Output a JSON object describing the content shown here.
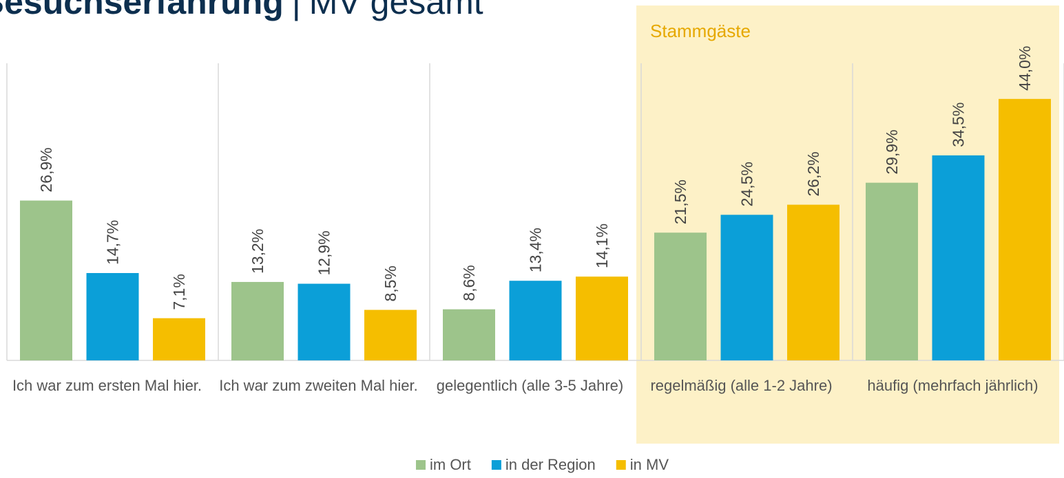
{
  "chart_data": {
    "type": "bar",
    "title": "Besuchserfahrung",
    "subtitle": "MV gesamt",
    "title_separator": "|",
    "categories": [
      "Ich war zum ersten Mal hier.",
      "Ich war zum zweiten Mal hier.",
      "gelegentlich (alle 3-5 Jahre)",
      "regelmäßig (alle 1-2 Jahre)",
      "häufig (mehrfach jährlich)"
    ],
    "series": [
      {
        "name": "im Ort",
        "color": "#9dc48b",
        "values": [
          26.9,
          13.2,
          8.6,
          21.5,
          29.9
        ],
        "value_labels": [
          "26,9%",
          "13,2%",
          "8,6%",
          "21,5%",
          "29,9%"
        ]
      },
      {
        "name": "in der Region",
        "color": "#0b9fd8",
        "values": [
          14.7,
          12.9,
          13.4,
          24.5,
          34.5
        ],
        "value_labels": [
          "14,7%",
          "12,9%",
          "13,4%",
          "24,5%",
          "34,5%"
        ]
      },
      {
        "name": "in MV",
        "color": "#f5be00",
        "values": [
          7.1,
          8.5,
          14.1,
          26.2,
          44.0
        ],
        "value_labels": [
          "7,1%",
          "8,5%",
          "14,1%",
          "26,2%",
          "44,0%"
        ]
      }
    ],
    "ylim": [
      0,
      50
    ],
    "legend": "bottom",
    "highlight": {
      "label": "Stammgäste",
      "categories": [
        3,
        4
      ],
      "color": "#fdf1c7",
      "label_color": "#e6a800"
    }
  }
}
